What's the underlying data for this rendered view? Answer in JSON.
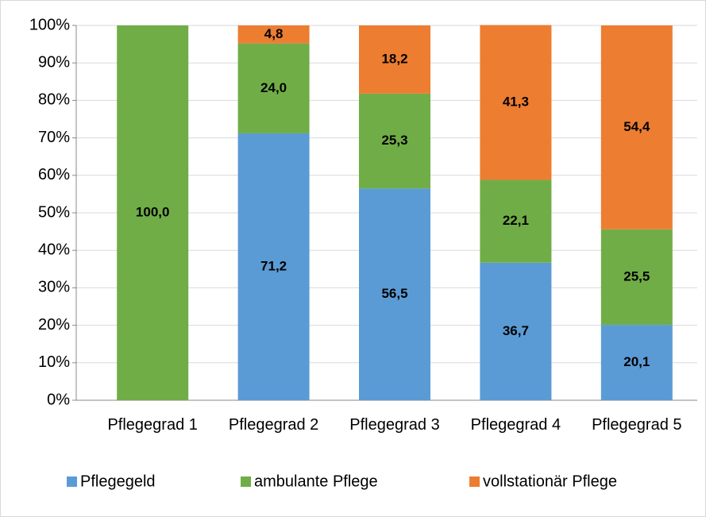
{
  "chart_data": {
    "type": "stacked_bar",
    "categories": [
      "Pflegegrad 1",
      "Pflegegrad 2",
      "Pflegegrad 3",
      "Pflegegrad 4",
      "Pflegegrad 5"
    ],
    "series": [
      {
        "name": "Pflegegeld",
        "color": "#5b9bd5",
        "values": [
          null,
          71.2,
          56.5,
          36.7,
          20.1
        ],
        "value_labels": [
          null,
          "71,2",
          "56,5",
          "36,7",
          "20,1"
        ]
      },
      {
        "name": "ambulante Pflege",
        "color": "#70ad47",
        "values": [
          100.0,
          24.0,
          25.3,
          22.1,
          25.5
        ],
        "value_labels": [
          "100,0",
          "24,0",
          "25,3",
          "22,1",
          "25,5"
        ]
      },
      {
        "name": "vollstationär Pflege",
        "color": "#ed7d31",
        "values": [
          null,
          4.8,
          18.2,
          41.3,
          54.4
        ],
        "value_labels": [
          null,
          "4,8",
          "18,2",
          "41,3",
          "54,4"
        ]
      }
    ],
    "ylim": [
      0,
      100
    ],
    "yticks": [
      {
        "value": 0,
        "label": "0%"
      },
      {
        "value": 10,
        "label": "10%"
      },
      {
        "value": 20,
        "label": "20%"
      },
      {
        "value": 30,
        "label": "30%"
      },
      {
        "value": 40,
        "label": "40%"
      },
      {
        "value": 50,
        "label": "50%"
      },
      {
        "value": 60,
        "label": "60%"
      },
      {
        "value": 70,
        "label": "70%"
      },
      {
        "value": 80,
        "label": "80%"
      },
      {
        "value": 90,
        "label": "90%"
      },
      {
        "value": 100,
        "label": "100%"
      }
    ],
    "grid": true,
    "legend": "bottom"
  }
}
